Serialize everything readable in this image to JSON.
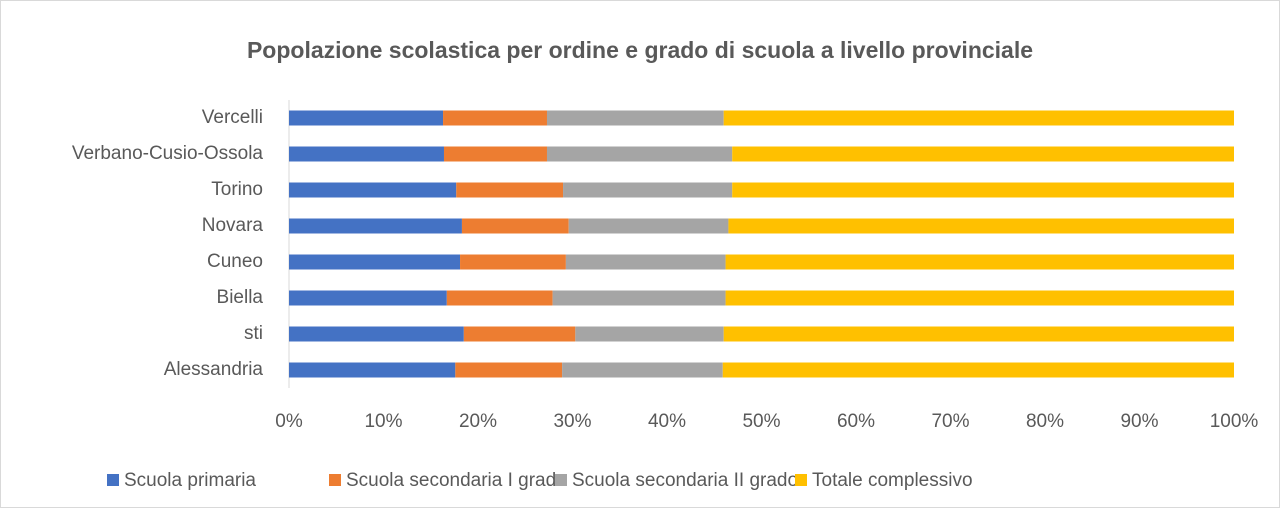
{
  "chart_data": {
    "type": "stacked_bar_horizontal",
    "title": "Popolazione scolastica per ordine e grado di scuola a livello provinciale",
    "categories": [
      "Vercelli",
      "Verbano-Cusio-Ossola",
      "Torino",
      "Novara",
      "Cuneo",
      "Biella",
      "sti",
      "Alessandria"
    ],
    "series": [
      {
        "name": "Scuola primaria",
        "color": "#4472c4",
        "values": [
          16.3,
          16.4,
          17.7,
          18.3,
          18.1,
          16.7,
          18.5,
          17.6
        ]
      },
      {
        "name": "Scuola secondaria I grado",
        "color": "#ed7d31",
        "values": [
          11.0,
          10.9,
          11.3,
          11.3,
          11.2,
          11.2,
          11.8,
          11.3
        ]
      },
      {
        "name": "Scuola secondaria II grado",
        "color": "#a5a5a5",
        "values": [
          18.7,
          19.6,
          17.9,
          16.9,
          16.9,
          18.3,
          15.7,
          17.0
        ]
      },
      {
        "name": "Totale complessivo",
        "color": "#ffc000",
        "values": [
          54.0,
          53.1,
          53.1,
          53.5,
          53.8,
          53.8,
          54.0,
          54.1
        ]
      }
    ],
    "xlim": [
      0,
      100
    ],
    "xticks": [
      {
        "value": 0,
        "label": "0%"
      },
      {
        "value": 10,
        "label": "10%"
      },
      {
        "value": 20,
        "label": "20%"
      },
      {
        "value": 30,
        "label": "30%"
      },
      {
        "value": 40,
        "label": "40%"
      },
      {
        "value": 50,
        "label": "50%"
      },
      {
        "value": 60,
        "label": "60%"
      },
      {
        "value": 70,
        "label": "70%"
      },
      {
        "value": 80,
        "label": "80%"
      },
      {
        "value": 90,
        "label": "90%"
      },
      {
        "value": 100,
        "label": "100%"
      }
    ],
    "grid": false,
    "legend": "bottom"
  }
}
